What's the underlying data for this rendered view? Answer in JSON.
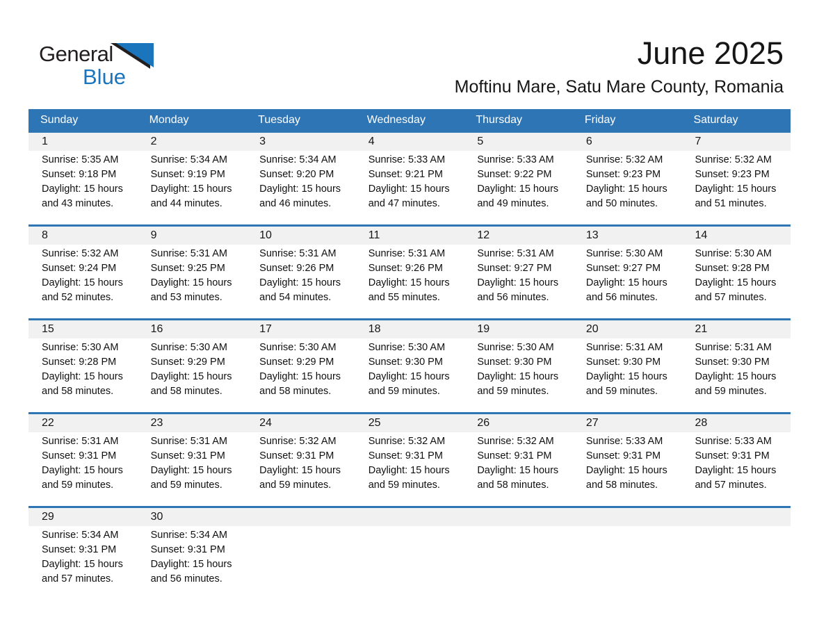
{
  "logo": {
    "line1": "General",
    "line2": "Blue"
  },
  "title": "June 2025",
  "subtitle": "Moftinu Mare, Satu Mare County, Romania",
  "colors": {
    "header_blue": "#2E75B6",
    "week_divider_blue": "#2E75B6",
    "day_band_gray": "#F1F1F1",
    "logo_blue": "#1B75BC"
  },
  "day_headers": [
    "Sunday",
    "Monday",
    "Tuesday",
    "Wednesday",
    "Thursday",
    "Friday",
    "Saturday"
  ],
  "weeks": [
    [
      {
        "day": "1",
        "sunrise": "Sunrise: 5:35 AM",
        "sunset": "Sunset: 9:18 PM",
        "daylight_line1": "Daylight: 15 hours",
        "daylight_line2": "and 43 minutes."
      },
      {
        "day": "2",
        "sunrise": "Sunrise: 5:34 AM",
        "sunset": "Sunset: 9:19 PM",
        "daylight_line1": "Daylight: 15 hours",
        "daylight_line2": "and 44 minutes."
      },
      {
        "day": "3",
        "sunrise": "Sunrise: 5:34 AM",
        "sunset": "Sunset: 9:20 PM",
        "daylight_line1": "Daylight: 15 hours",
        "daylight_line2": "and 46 minutes."
      },
      {
        "day": "4",
        "sunrise": "Sunrise: 5:33 AM",
        "sunset": "Sunset: 9:21 PM",
        "daylight_line1": "Daylight: 15 hours",
        "daylight_line2": "and 47 minutes."
      },
      {
        "day": "5",
        "sunrise": "Sunrise: 5:33 AM",
        "sunset": "Sunset: 9:22 PM",
        "daylight_line1": "Daylight: 15 hours",
        "daylight_line2": "and 49 minutes."
      },
      {
        "day": "6",
        "sunrise": "Sunrise: 5:32 AM",
        "sunset": "Sunset: 9:23 PM",
        "daylight_line1": "Daylight: 15 hours",
        "daylight_line2": "and 50 minutes."
      },
      {
        "day": "7",
        "sunrise": "Sunrise: 5:32 AM",
        "sunset": "Sunset: 9:23 PM",
        "daylight_line1": "Daylight: 15 hours",
        "daylight_line2": "and 51 minutes."
      }
    ],
    [
      {
        "day": "8",
        "sunrise": "Sunrise: 5:32 AM",
        "sunset": "Sunset: 9:24 PM",
        "daylight_line1": "Daylight: 15 hours",
        "daylight_line2": "and 52 minutes."
      },
      {
        "day": "9",
        "sunrise": "Sunrise: 5:31 AM",
        "sunset": "Sunset: 9:25 PM",
        "daylight_line1": "Daylight: 15 hours",
        "daylight_line2": "and 53 minutes."
      },
      {
        "day": "10",
        "sunrise": "Sunrise: 5:31 AM",
        "sunset": "Sunset: 9:26 PM",
        "daylight_line1": "Daylight: 15 hours",
        "daylight_line2": "and 54 minutes."
      },
      {
        "day": "11",
        "sunrise": "Sunrise: 5:31 AM",
        "sunset": "Sunset: 9:26 PM",
        "daylight_line1": "Daylight: 15 hours",
        "daylight_line2": "and 55 minutes."
      },
      {
        "day": "12",
        "sunrise": "Sunrise: 5:31 AM",
        "sunset": "Sunset: 9:27 PM",
        "daylight_line1": "Daylight: 15 hours",
        "daylight_line2": "and 56 minutes."
      },
      {
        "day": "13",
        "sunrise": "Sunrise: 5:30 AM",
        "sunset": "Sunset: 9:27 PM",
        "daylight_line1": "Daylight: 15 hours",
        "daylight_line2": "and 56 minutes."
      },
      {
        "day": "14",
        "sunrise": "Sunrise: 5:30 AM",
        "sunset": "Sunset: 9:28 PM",
        "daylight_line1": "Daylight: 15 hours",
        "daylight_line2": "and 57 minutes."
      }
    ],
    [
      {
        "day": "15",
        "sunrise": "Sunrise: 5:30 AM",
        "sunset": "Sunset: 9:28 PM",
        "daylight_line1": "Daylight: 15 hours",
        "daylight_line2": "and 58 minutes."
      },
      {
        "day": "16",
        "sunrise": "Sunrise: 5:30 AM",
        "sunset": "Sunset: 9:29 PM",
        "daylight_line1": "Daylight: 15 hours",
        "daylight_line2": "and 58 minutes."
      },
      {
        "day": "17",
        "sunrise": "Sunrise: 5:30 AM",
        "sunset": "Sunset: 9:29 PM",
        "daylight_line1": "Daylight: 15 hours",
        "daylight_line2": "and 58 minutes."
      },
      {
        "day": "18",
        "sunrise": "Sunrise: 5:30 AM",
        "sunset": "Sunset: 9:30 PM",
        "daylight_line1": "Daylight: 15 hours",
        "daylight_line2": "and 59 minutes."
      },
      {
        "day": "19",
        "sunrise": "Sunrise: 5:30 AM",
        "sunset": "Sunset: 9:30 PM",
        "daylight_line1": "Daylight: 15 hours",
        "daylight_line2": "and 59 minutes."
      },
      {
        "day": "20",
        "sunrise": "Sunrise: 5:31 AM",
        "sunset": "Sunset: 9:30 PM",
        "daylight_line1": "Daylight: 15 hours",
        "daylight_line2": "and 59 minutes."
      },
      {
        "day": "21",
        "sunrise": "Sunrise: 5:31 AM",
        "sunset": "Sunset: 9:30 PM",
        "daylight_line1": "Daylight: 15 hours",
        "daylight_line2": "and 59 minutes."
      }
    ],
    [
      {
        "day": "22",
        "sunrise": "Sunrise: 5:31 AM",
        "sunset": "Sunset: 9:31 PM",
        "daylight_line1": "Daylight: 15 hours",
        "daylight_line2": "and 59 minutes."
      },
      {
        "day": "23",
        "sunrise": "Sunrise: 5:31 AM",
        "sunset": "Sunset: 9:31 PM",
        "daylight_line1": "Daylight: 15 hours",
        "daylight_line2": "and 59 minutes."
      },
      {
        "day": "24",
        "sunrise": "Sunrise: 5:32 AM",
        "sunset": "Sunset: 9:31 PM",
        "daylight_line1": "Daylight: 15 hours",
        "daylight_line2": "and 59 minutes."
      },
      {
        "day": "25",
        "sunrise": "Sunrise: 5:32 AM",
        "sunset": "Sunset: 9:31 PM",
        "daylight_line1": "Daylight: 15 hours",
        "daylight_line2": "and 59 minutes."
      },
      {
        "day": "26",
        "sunrise": "Sunrise: 5:32 AM",
        "sunset": "Sunset: 9:31 PM",
        "daylight_line1": "Daylight: 15 hours",
        "daylight_line2": "and 58 minutes."
      },
      {
        "day": "27",
        "sunrise": "Sunrise: 5:33 AM",
        "sunset": "Sunset: 9:31 PM",
        "daylight_line1": "Daylight: 15 hours",
        "daylight_line2": "and 58 minutes."
      },
      {
        "day": "28",
        "sunrise": "Sunrise: 5:33 AM",
        "sunset": "Sunset: 9:31 PM",
        "daylight_line1": "Daylight: 15 hours",
        "daylight_line2": "and 57 minutes."
      }
    ],
    [
      {
        "day": "29",
        "sunrise": "Sunrise: 5:34 AM",
        "sunset": "Sunset: 9:31 PM",
        "daylight_line1": "Daylight: 15 hours",
        "daylight_line2": "and 57 minutes."
      },
      {
        "day": "30",
        "sunrise": "Sunrise: 5:34 AM",
        "sunset": "Sunset: 9:31 PM",
        "daylight_line1": "Daylight: 15 hours",
        "daylight_line2": "and 56 minutes."
      },
      null,
      null,
      null,
      null,
      null
    ]
  ]
}
